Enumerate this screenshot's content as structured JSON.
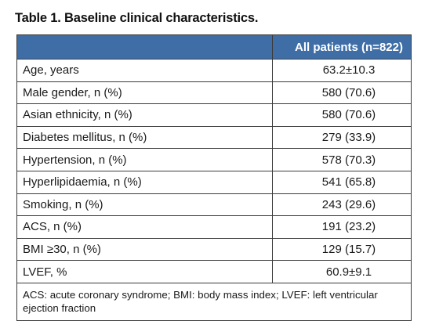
{
  "title": "Table 1. Baseline clinical characteristics.",
  "table": {
    "header": {
      "column_label": "All patients (n=822)"
    },
    "rows": [
      {
        "label": "Age, years",
        "value": "63.2±10.3"
      },
      {
        "label": "Male gender, n (%)",
        "value": "580 (70.6)"
      },
      {
        "label": "Asian ethnicity, n (%)",
        "value": "580 (70.6)"
      },
      {
        "label": "Diabetes mellitus, n (%)",
        "value": "279 (33.9)"
      },
      {
        "label": "Hypertension, n (%)",
        "value": "578 (70.3)"
      },
      {
        "label": "Hyperlipidaemia, n (%)",
        "value": "541 (65.8)"
      },
      {
        "label": "Smoking, n (%)",
        "value": "243 (29.6)"
      },
      {
        "label": "ACS, n (%)",
        "value": "191 (23.2)"
      },
      {
        "label": "BMI ≥30, n (%)",
        "value": "129 (15.7)"
      },
      {
        "label": "LVEF, %",
        "value": "60.9±9.1"
      }
    ],
    "footnote": "ACS: acute coronary syndrome; BMI: body mass index; LVEF: left ventricular ejection fraction"
  },
  "colors": {
    "header_background": "#3f6ea7",
    "header_text": "#ffffff",
    "border": "#3b3b3b"
  }
}
